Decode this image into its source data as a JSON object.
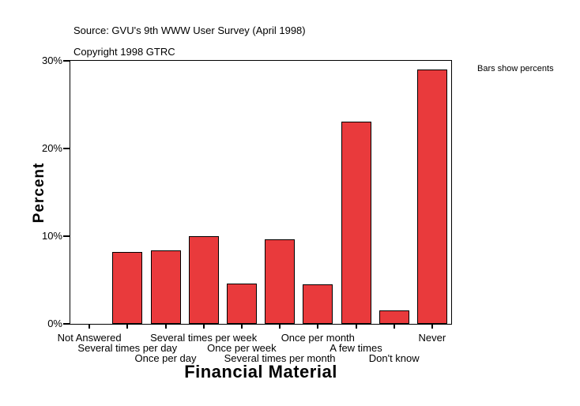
{
  "header": {
    "source": "Source: GVU's 9th WWW User Survey (April 1998)",
    "copyright": "Copyright 1998 GTRC"
  },
  "annotation": {
    "text": "Bars show percents"
  },
  "chart_data": {
    "type": "bar",
    "title": "Financial Material",
    "xlabel": "Financial Material",
    "ylabel": "Percent",
    "categories": [
      "Not Answered",
      "Several times per day",
      "Once per day",
      "Several times per week",
      "Once per week",
      "Several times per month",
      "Once per month",
      "A few times",
      "Don't know",
      "Never"
    ],
    "values": [
      0,
      8.2,
      8.4,
      10,
      4.6,
      9.6,
      4.5,
      23.1,
      1.5,
      29
    ],
    "y_ticks": [
      "0%",
      "10%",
      "20%",
      "30%"
    ],
    "y_tick_values": [
      0,
      10,
      20,
      30
    ],
    "ylim": [
      0,
      30
    ],
    "grid": false,
    "legend": "none",
    "bar_color": "#e93a3c",
    "bar_border_color": "#000000",
    "axis_color": "#000000"
  }
}
